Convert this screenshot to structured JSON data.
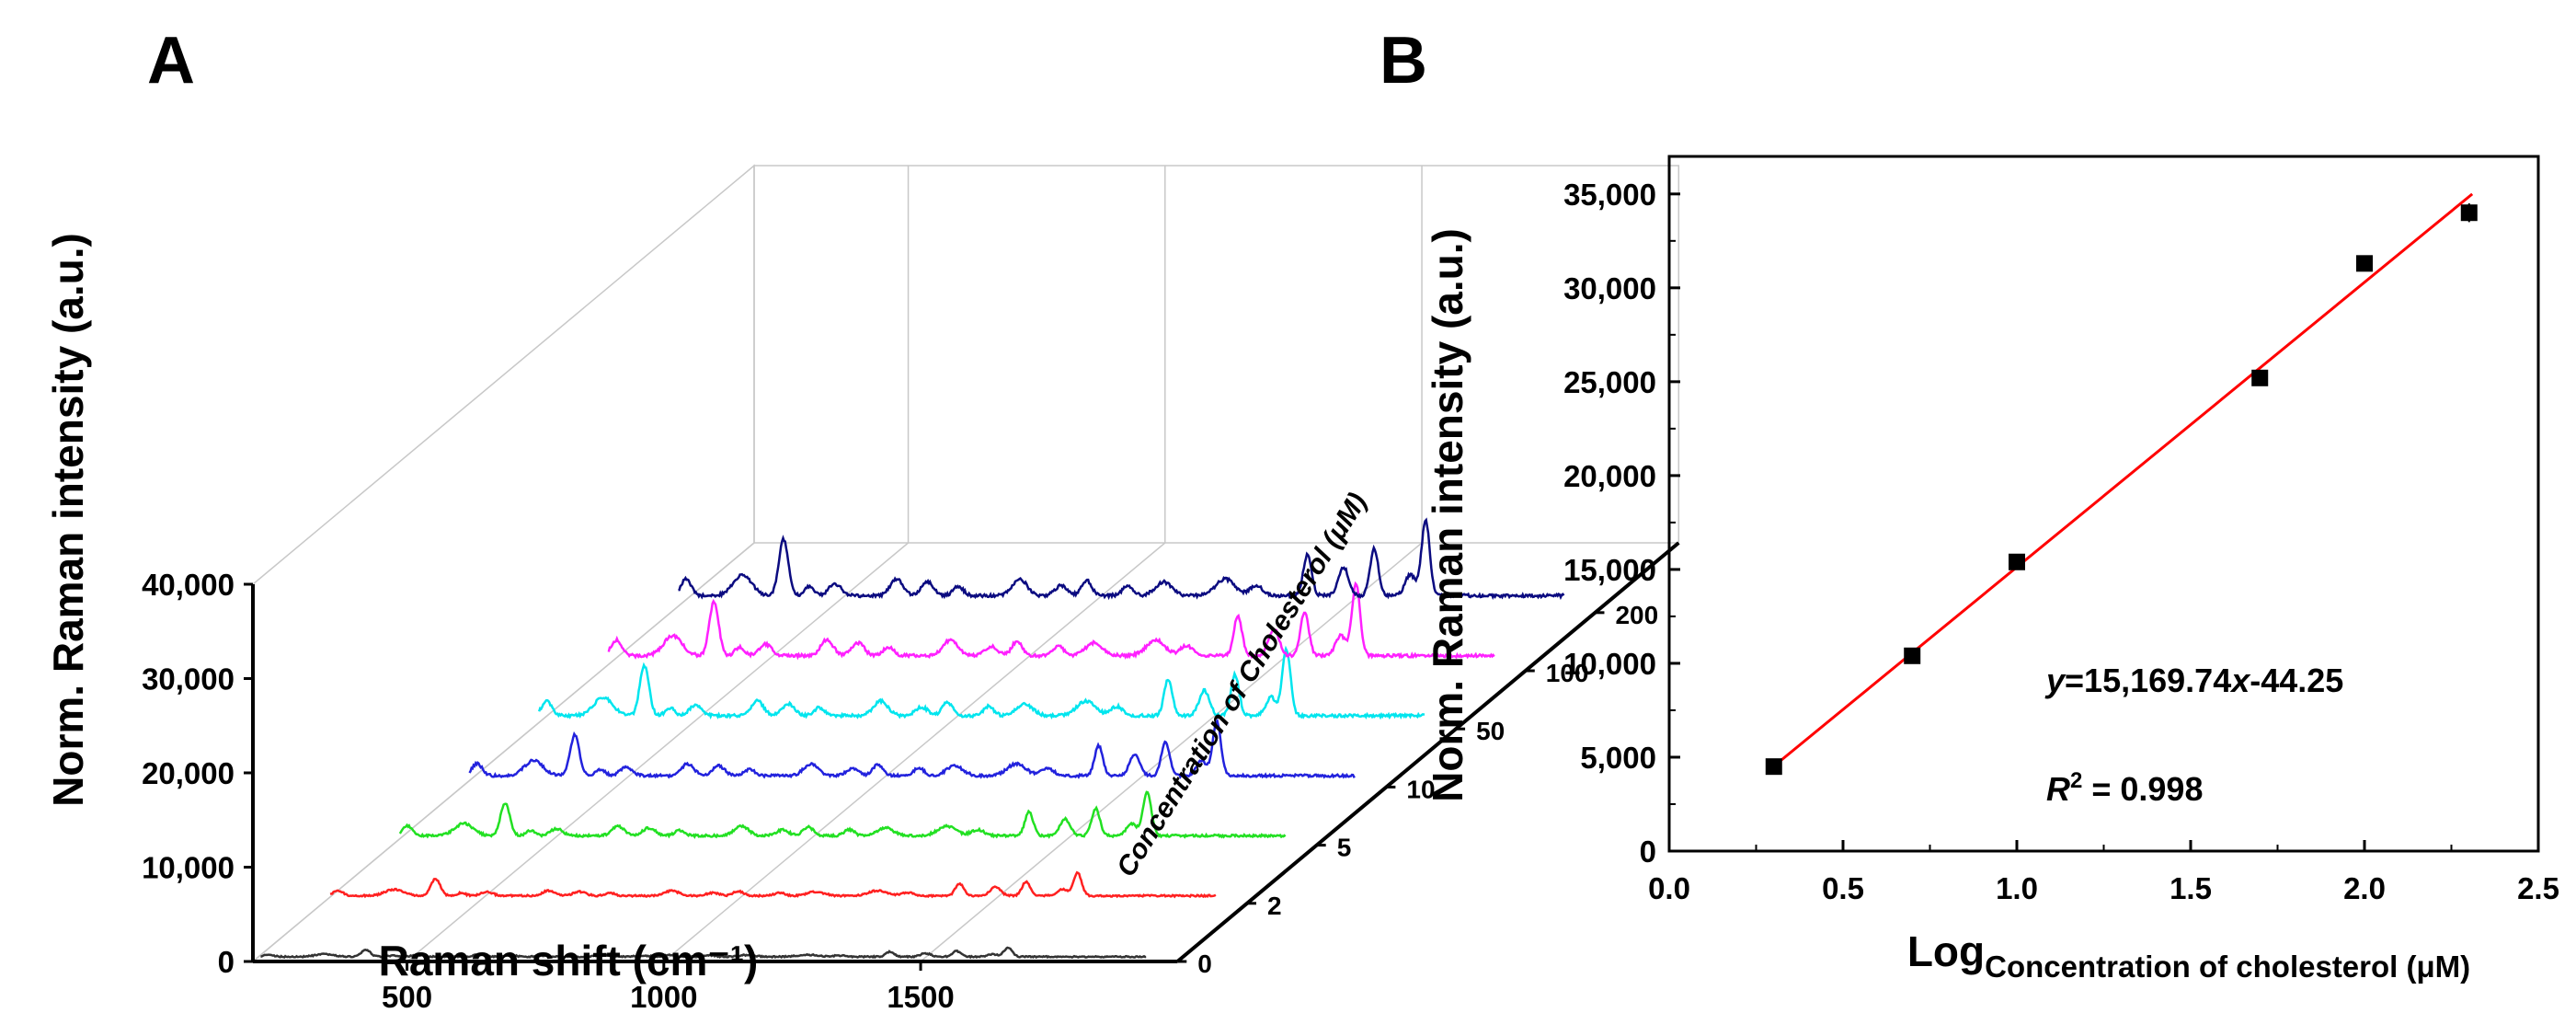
{
  "panels": {
    "a_label": "A",
    "b_label": "B"
  },
  "chart_data": [
    {
      "panel": "A",
      "type": "line",
      "xlabel": "Raman shift (cm⁻¹)",
      "ylabel": "Norm. Raman intensity (a.u.)",
      "zlabel": "Concentration of Cholesterol (μM)",
      "xlim": [
        200,
        2000
      ],
      "ylim": [
        0,
        40000
      ],
      "x_ticks": [
        "500",
        "1000",
        "1500"
      ],
      "x_tick_values": [
        500,
        1000,
        1500
      ],
      "y_ticks": [
        "0",
        "10,000",
        "20,000",
        "30,000",
        "40,000"
      ],
      "y_tick_values": [
        0,
        10000,
        20000,
        30000,
        40000
      ],
      "grid": true,
      "series": [
        {
          "name": "0",
          "color": "#333333",
          "baseline": 500,
          "amplitude": 0.12
        },
        {
          "name": "2",
          "color": "#ff2020",
          "baseline": 800,
          "amplitude": 0.3
        },
        {
          "name": "5",
          "color": "#22e022",
          "baseline": 1000,
          "amplitude": 0.58
        },
        {
          "name": "10",
          "color": "#2222dd",
          "baseline": 1200,
          "amplitude": 0.72
        },
        {
          "name": "50",
          "color": "#00e5ee",
          "baseline": 1400,
          "amplitude": 0.88
        },
        {
          "name": "100",
          "color": "#ff20ff",
          "baseline": 1600,
          "amplitude": 0.95
        },
        {
          "name": "200",
          "color": "#0b0b80",
          "baseline": 1800,
          "amplitude": 1.0
        }
      ],
      "peaks": [
        {
          "x": 230,
          "h": 0.22,
          "w": 10
        },
        {
          "x": 340,
          "h": 0.28,
          "w": 18
        },
        {
          "x": 420,
          "h": 0.75,
          "w": 9
        },
        {
          "x": 470,
          "h": 0.12,
          "w": 9
        },
        {
          "x": 520,
          "h": 0.16,
          "w": 12
        },
        {
          "x": 640,
          "h": 0.22,
          "w": 12
        },
        {
          "x": 700,
          "h": 0.18,
          "w": 12
        },
        {
          "x": 760,
          "h": 0.12,
          "w": 10
        },
        {
          "x": 880,
          "h": 0.22,
          "w": 14
        },
        {
          "x": 960,
          "h": 0.13,
          "w": 12
        },
        {
          "x": 1010,
          "h": 0.2,
          "w": 10
        },
        {
          "x": 1090,
          "h": 0.14,
          "w": 10
        },
        {
          "x": 1160,
          "h": 0.18,
          "w": 16
        },
        {
          "x": 1280,
          "h": 0.22,
          "w": 18
        },
        {
          "x": 1340,
          "h": 0.14,
          "w": 12
        },
        {
          "x": 1440,
          "h": 0.55,
          "w": 8
        },
        {
          "x": 1510,
          "h": 0.38,
          "w": 10
        },
        {
          "x": 1570,
          "h": 0.62,
          "w": 8
        },
        {
          "x": 1640,
          "h": 0.28,
          "w": 10
        },
        {
          "x": 1670,
          "h": 1.0,
          "w": 8
        }
      ]
    },
    {
      "panel": "B",
      "type": "scatter",
      "xlabel_main": "Log",
      "xlabel_sub": "Concentration of cholesterol (μM)",
      "ylabel": "Norm. Raman intensity (a.u.)",
      "xlim": [
        0.0,
        2.5
      ],
      "ylim": [
        0,
        37000
      ],
      "x_ticks": [
        "0.0",
        "0.5",
        "1.0",
        "1.5",
        "2.0",
        "2.5"
      ],
      "x_tick_values": [
        0.0,
        0.5,
        1.0,
        1.5,
        2.0,
        2.5
      ],
      "y_ticks": [
        "0",
        "5,000",
        "10,000",
        "15,000",
        "20,000",
        "25,000",
        "30,000",
        "35,000"
      ],
      "y_tick_values": [
        0,
        5000,
        10000,
        15000,
        20000,
        25000,
        30000,
        35000
      ],
      "x": [
        0.301,
        0.699,
        1.0,
        1.699,
        2.0,
        2.301
      ],
      "y": [
        4500,
        10400,
        15400,
        25200,
        31300,
        34000
      ],
      "error": [
        200,
        250,
        250,
        300,
        300,
        500
      ],
      "fit": {
        "slope": 15169.74,
        "intercept": -44.25,
        "color": "#ff0000",
        "x_range": [
          0.28,
          2.31
        ]
      },
      "equation": {
        "y": "y",
        "rest": "=15,169.74",
        "x": "x",
        "tail": "-44.25"
      },
      "r_squared": {
        "r": "R",
        "sup": "2",
        "value": " = 0.998"
      }
    }
  ]
}
